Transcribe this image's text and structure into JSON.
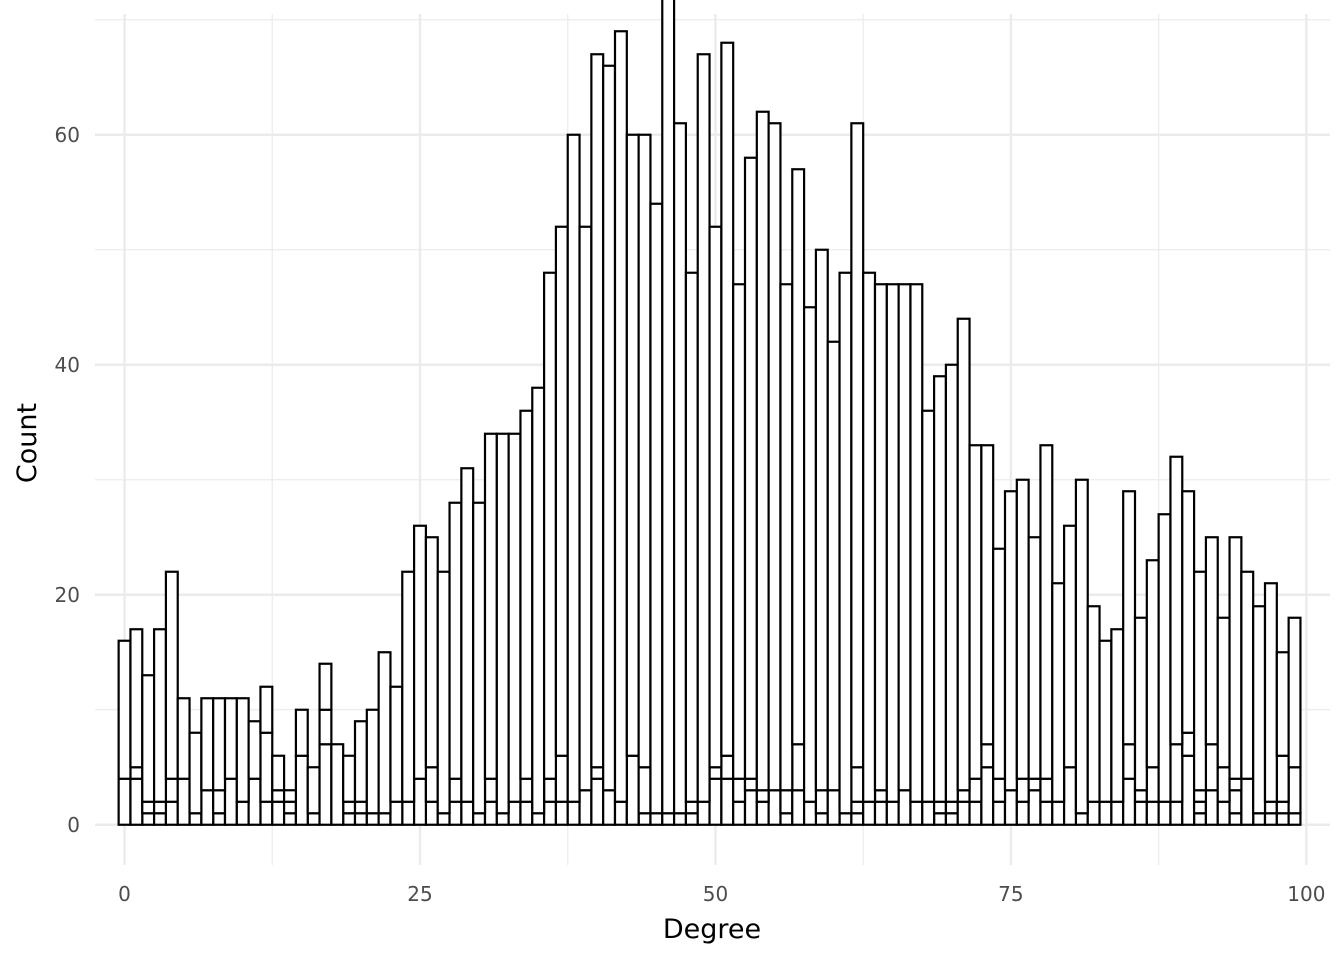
{
  "chart_data": {
    "type": "bar",
    "style": "stacked histogram, outlined bars with white fill, minimal theme",
    "xlabel": "Degree",
    "ylabel": "Count",
    "xlim": [
      -2.5,
      102
    ],
    "ylim": [
      -3.5,
      70.5
    ],
    "x_ticks": [
      0,
      25,
      50,
      75,
      100
    ],
    "y_ticks": [
      0,
      20,
      40,
      60
    ],
    "grid": true,
    "legend": "none",
    "colors": {
      "fill": "#ffffff",
      "outline": "#000000",
      "grid": "#ebebeb"
    },
    "x": [
      0,
      1,
      2,
      3,
      4,
      5,
      6,
      7,
      8,
      9,
      10,
      11,
      12,
      13,
      14,
      15,
      16,
      17,
      18,
      19,
      20,
      21,
      22,
      23,
      24,
      25,
      26,
      27,
      28,
      29,
      30,
      31,
      32,
      33,
      34,
      35,
      36,
      37,
      38,
      39,
      40,
      41,
      42,
      43,
      44,
      45,
      46,
      47,
      48,
      49,
      50,
      51,
      52,
      53,
      54,
      55,
      56,
      57,
      58,
      59,
      60,
      61,
      62,
      63,
      64,
      65,
      66,
      67,
      68,
      69,
      70,
      71,
      72,
      73,
      74,
      75,
      76,
      77,
      78,
      79,
      80,
      81,
      82,
      83,
      84,
      85,
      86,
      87,
      88,
      89,
      90,
      91,
      92,
      93,
      94,
      95,
      96,
      97,
      98,
      99
    ],
    "series": [
      {
        "values": [
          0,
          0,
          0,
          0,
          0,
          0,
          0,
          0,
          0,
          0,
          0,
          0,
          0,
          0,
          0,
          0,
          0,
          0,
          0,
          0,
          0,
          0,
          0,
          0,
          0,
          0,
          0,
          0,
          0,
          0,
          0,
          0,
          0,
          0,
          0,
          0,
          0,
          0,
          0,
          0,
          0,
          0,
          0,
          0,
          1,
          1,
          1,
          1,
          1,
          0,
          0,
          0,
          0,
          0,
          0,
          0,
          1,
          0,
          0,
          1,
          0,
          1,
          1,
          0,
          0,
          0,
          0,
          0,
          0,
          1,
          1,
          0,
          0,
          0,
          0,
          0,
          0,
          0,
          0,
          0,
          0,
          1,
          0,
          0,
          0,
          0,
          0,
          0,
          0,
          0,
          0,
          1,
          0,
          0,
          1,
          0,
          1,
          1,
          1,
          1
        ]
      },
      {
        "values": [
          0,
          0,
          1,
          1,
          2,
          0,
          1,
          0,
          1,
          0,
          0,
          0,
          2,
          2,
          1,
          0,
          1,
          0,
          0,
          1,
          1,
          1,
          1,
          0,
          2,
          0,
          2,
          1,
          2,
          2,
          1,
          2,
          1,
          2,
          2,
          1,
          2,
          2,
          2,
          3,
          4,
          3,
          2,
          6,
          4,
          0,
          0,
          0,
          1,
          2,
          4,
          4,
          2,
          3,
          2,
          3,
          2,
          3,
          2,
          2,
          3,
          0,
          1,
          2,
          2,
          2,
          3,
          2,
          2,
          1,
          1,
          2,
          2,
          5,
          2,
          3,
          2,
          3,
          2,
          2,
          5,
          0,
          2,
          2,
          2,
          4,
          2,
          2,
          2,
          2,
          6,
          1,
          3,
          2,
          2,
          4,
          0,
          1,
          1,
          4
        ]
      },
      {
        "values": [
          4,
          4,
          1,
          1,
          2,
          4,
          0,
          3,
          2,
          4,
          2,
          4,
          6,
          1,
          1,
          6,
          4,
          7,
          0,
          1,
          1,
          0,
          0,
          2,
          0,
          4,
          3,
          0,
          2,
          0,
          0,
          2,
          0,
          0,
          2,
          0,
          2,
          4,
          0,
          0,
          1,
          0,
          0,
          0,
          0,
          0,
          0,
          0,
          0,
          0,
          1,
          2,
          2,
          1,
          1,
          0,
          0,
          4,
          0,
          0,
          0,
          0,
          3,
          0,
          1,
          0,
          0,
          0,
          0,
          0,
          0,
          1,
          2,
          2,
          2,
          0,
          2,
          1,
          2,
          0,
          0,
          0,
          0,
          0,
          0,
          3,
          1,
          3,
          0,
          5,
          2,
          1,
          4,
          3,
          1,
          0,
          0,
          0,
          4,
          0
        ]
      },
      {
        "values": [
          0,
          1,
          0,
          0,
          0,
          0,
          0,
          0,
          0,
          0,
          0,
          0,
          0,
          0,
          1,
          0,
          0,
          3,
          0,
          0,
          0,
          0,
          0,
          0,
          0,
          0,
          0,
          0,
          0,
          0,
          0,
          0,
          0,
          0,
          0,
          0,
          0,
          0,
          0,
          0,
          0,
          0,
          0,
          0,
          0,
          0,
          0,
          0,
          0,
          0,
          0,
          0,
          0,
          0,
          0,
          0,
          0,
          0,
          0,
          0,
          0,
          0,
          0,
          0,
          0,
          0,
          0,
          0,
          0,
          0,
          0,
          0,
          0,
          0,
          0,
          0,
          0,
          0,
          0,
          0,
          0,
          0,
          0,
          0,
          0,
          0,
          0,
          0,
          0,
          0,
          0,
          0,
          0,
          0,
          0,
          0,
          0,
          0,
          0,
          0
        ]
      },
      {
        "values": [
          12,
          12,
          11,
          15,
          18,
          7,
          7,
          8,
          8,
          7,
          9,
          5,
          4,
          3,
          0,
          4,
          0,
          4,
          7,
          4,
          7,
          9,
          14,
          10,
          20,
          22,
          20,
          21,
          24,
          29,
          27,
          30,
          33,
          32,
          32,
          37,
          44,
          46,
          58,
          49,
          62,
          63,
          67,
          54,
          55,
          53,
          71,
          60,
          46,
          65,
          47,
          62,
          43,
          54,
          59,
          58,
          44,
          50,
          43,
          47,
          39,
          47,
          56,
          46,
          44,
          45,
          44,
          45,
          34,
          37,
          38,
          41,
          29,
          26,
          20,
          26,
          26,
          21,
          29,
          19,
          21,
          29,
          17,
          14,
          15,
          22,
          15,
          18,
          25,
          25,
          21,
          19,
          18,
          13,
          21,
          18,
          18,
          19,
          9,
          13
        ]
      }
    ]
  }
}
